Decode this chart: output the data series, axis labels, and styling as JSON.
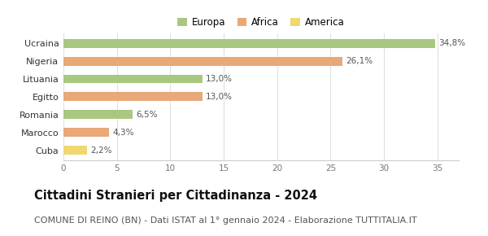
{
  "categories": [
    "Cuba",
    "Marocco",
    "Romania",
    "Egitto",
    "Lituania",
    "Nigeria",
    "Ucraina"
  ],
  "values": [
    2.2,
    4.3,
    6.5,
    13.0,
    13.0,
    26.1,
    34.8
  ],
  "labels": [
    "2,2%",
    "4,3%",
    "6,5%",
    "13,0%",
    "13,0%",
    "26,1%",
    "34,8%"
  ],
  "colors": [
    "#f0d870",
    "#e8a878",
    "#a8c880",
    "#e8a878",
    "#a8c880",
    "#e8a878",
    "#a8c880"
  ],
  "legend": [
    {
      "label": "Europa",
      "color": "#a8c880"
    },
    {
      "label": "Africa",
      "color": "#e8a878"
    },
    {
      "label": "America",
      "color": "#f0d870"
    }
  ],
  "xlim": [
    0,
    37
  ],
  "xticks": [
    0,
    5,
    10,
    15,
    20,
    25,
    30,
    35
  ],
  "title": "Cittadini Stranieri per Cittadinanza - 2024",
  "subtitle": "COMUNE DI REINO (BN) - Dati ISTAT al 1° gennaio 2024 - Elaborazione TUTTITALIA.IT",
  "figure_bg": "#ffffff",
  "axes_bg": "#ffffff",
  "bar_height": 0.5,
  "label_fontsize": 7.5,
  "ytick_fontsize": 8,
  "xtick_fontsize": 7.5,
  "title_fontsize": 10.5,
  "subtitle_fontsize": 8
}
